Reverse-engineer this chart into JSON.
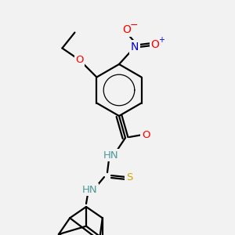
{
  "bg_color": "#f2f2f2",
  "bond_color": "#000000",
  "bond_width": 1.6,
  "atom_colors": {
    "N": "#0000cd",
    "N_teal": "#4d9999",
    "O": "#ff0000",
    "S": "#ccaa00",
    "C": "#000000"
  },
  "font_size": 9.5,
  "fig_size": [
    3.0,
    3.0
  ],
  "dpi": 100,
  "scale": 28
}
